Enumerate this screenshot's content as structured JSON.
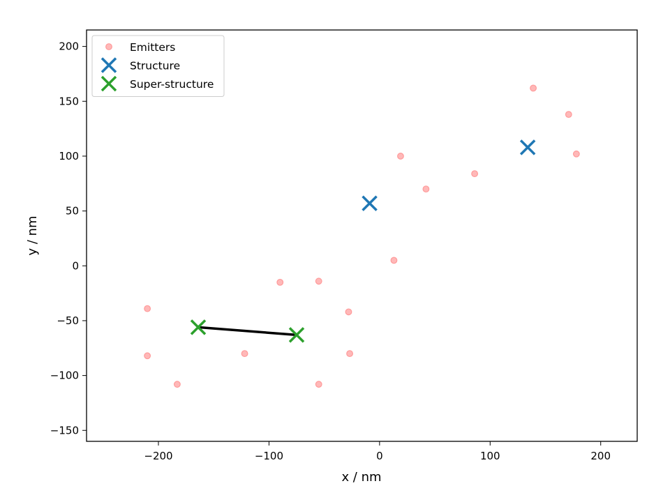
{
  "chart_data": {
    "type": "scatter",
    "xlabel": "x / nm",
    "ylabel": "y / nm",
    "xlim": [
      -265,
      233
    ],
    "ylim": [
      -160,
      215
    ],
    "xticks": [
      -200,
      -100,
      0,
      100,
      200
    ],
    "yticks": [
      -150,
      -100,
      -50,
      0,
      50,
      100,
      150,
      200
    ],
    "xtick_labels": [
      "−200",
      "−100",
      "0",
      "100",
      "200"
    ],
    "ytick_labels": [
      "−150",
      "−100",
      "−50",
      "0",
      "50",
      "100",
      "150",
      "200"
    ],
    "grid": false,
    "legend_location": "top-left",
    "series": [
      {
        "name": "Emitters",
        "marker": "circle",
        "color": "#ff9a9a",
        "points": [
          {
            "x": 139,
            "y": 162
          },
          {
            "x": 171,
            "y": 138
          },
          {
            "x": 178,
            "y": 102
          },
          {
            "x": 19,
            "y": 100
          },
          {
            "x": 86,
            "y": 84
          },
          {
            "x": 42,
            "y": 70
          },
          {
            "x": 13,
            "y": 5
          },
          {
            "x": -90,
            "y": -15
          },
          {
            "x": -55,
            "y": -14
          },
          {
            "x": -28,
            "y": -42
          },
          {
            "x": -210,
            "y": -39
          },
          {
            "x": -210,
            "y": -82
          },
          {
            "x": -122,
            "y": -80
          },
          {
            "x": -27,
            "y": -80
          },
          {
            "x": -183,
            "y": -108
          },
          {
            "x": -55,
            "y": -108
          }
        ]
      },
      {
        "name": "Structure",
        "marker": "x",
        "color": "#1f77b4",
        "points": [
          {
            "x": -9,
            "y": 57
          },
          {
            "x": 134,
            "y": 108
          }
        ]
      },
      {
        "name": "Super-structure",
        "marker": "x",
        "color": "#2ca02c",
        "points": [
          {
            "x": -164,
            "y": -56
          },
          {
            "x": -75,
            "y": -63
          }
        ]
      }
    ],
    "lines": [
      {
        "color": "#000000",
        "points": [
          {
            "x": -164,
            "y": -56
          },
          {
            "x": -75,
            "y": -63
          }
        ]
      }
    ]
  }
}
